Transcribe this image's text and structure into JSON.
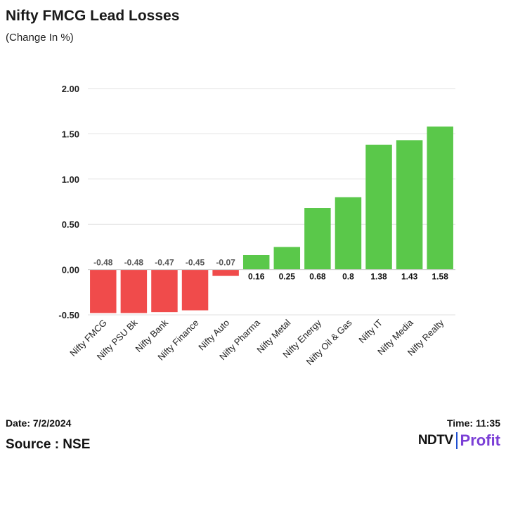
{
  "header": {
    "title": "Nifty FMCG Lead Losses",
    "subtitle": "(Change In %)"
  },
  "chart_data": {
    "type": "bar",
    "categories": [
      "Nifty FMCG",
      "Nifty PSU Bk",
      "Nifty Bank",
      "Nifty Finance",
      "Nifty Auto",
      "Nifty Pharma",
      "Nifty Metal",
      "Nifty Energy",
      "Nifty Oil & Gas",
      "Nifty IT",
      "Nifty Media",
      "Nifty Realty"
    ],
    "values": [
      -0.48,
      -0.48,
      -0.47,
      -0.45,
      -0.07,
      0.16,
      0.25,
      0.68,
      0.8,
      1.38,
      1.43,
      1.58
    ],
    "value_labels": [
      "-0.48",
      "-0.48",
      "-0.47",
      "-0.45",
      "-0.07",
      "0.16",
      "0.25",
      "0.68",
      "0.8",
      "1.38",
      "1.43",
      "1.58"
    ],
    "title": "Nifty FMCG Lead Losses",
    "subtitle": "(Change In %)",
    "ylim": [
      -0.5,
      2.0
    ],
    "yticks": [
      -0.5,
      0,
      0.5,
      1.0,
      1.5,
      2.0
    ],
    "ytick_labels": [
      "-0.50",
      "0.00",
      "0.50",
      "1.00",
      "1.50",
      "2.00"
    ],
    "grid": true,
    "colors": {
      "positive": "#5ac84a",
      "negative": "#f04b4b"
    }
  },
  "footer": {
    "date": "Date: 7/2/2024",
    "time": "Time: 11:35",
    "source": "Source : NSE",
    "logo_ndtv": "NDTV",
    "logo_profit": "Profit"
  }
}
